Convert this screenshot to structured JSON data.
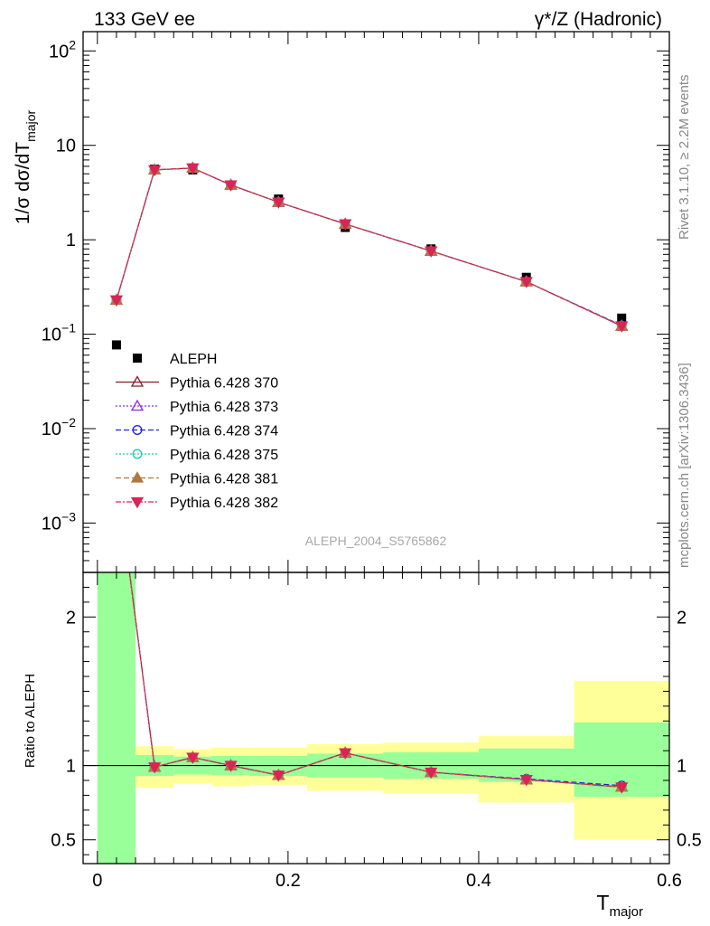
{
  "header": {
    "left_title": "133 GeV ee",
    "right_title": "γ*/Z (Hadronic)"
  },
  "side_labels": {
    "top": "Rivet 3.1.10, ≥ 2.2M events",
    "bottom": "mcplots.cern.ch [arXiv:1306.3436]"
  },
  "watermark": "ALEPH_2004_S5765862",
  "chart_data": [
    {
      "type": "line",
      "panel": "main",
      "ylabel": "1/σ  dσ/dT",
      "ylabel_sub": "major",
      "yscale": "log",
      "ylim": [
        0.0003,
        160
      ],
      "xlim": [
        -0.015,
        0.6
      ],
      "yticks": [
        {
          "value": 100,
          "base": "10",
          "exp": "2"
        },
        {
          "value": 10,
          "base": "10",
          "exp": ""
        },
        {
          "value": 1,
          "base": "1",
          "exp": ""
        },
        {
          "value": 0.1,
          "base": "10",
          "exp": "−1"
        },
        {
          "value": 0.01,
          "base": "10",
          "exp": "−2"
        },
        {
          "value": 0.001,
          "base": "10",
          "exp": "−3"
        }
      ],
      "data_series": {
        "name": "ALEPH",
        "color": "#000000",
        "x": [
          0.02,
          0.06,
          0.1,
          0.14,
          0.19,
          0.26,
          0.35,
          0.45,
          0.55
        ],
        "y": [
          0.077,
          5.6,
          5.5,
          3.8,
          2.7,
          1.35,
          0.8,
          0.4,
          0.148
        ]
      },
      "mc_x": [
        0.02,
        0.06,
        0.1,
        0.14,
        0.19,
        0.26,
        0.35,
        0.45,
        0.55
      ],
      "series": [
        {
          "name": "Pythia 6.428 370",
          "color": "#8b1a2b",
          "dash": "",
          "marker": "triangle-up-open",
          "y": [
            0.23,
            5.5,
            5.75,
            3.8,
            2.5,
            1.47,
            0.76,
            0.36,
            0.122
          ]
        },
        {
          "name": "Pythia 6.428 373",
          "color": "#8a2be2",
          "dash": "2,2",
          "marker": "triangle-up-open",
          "y": [
            0.23,
            5.5,
            5.75,
            3.8,
            2.5,
            1.47,
            0.76,
            0.36,
            0.122
          ]
        },
        {
          "name": "Pythia 6.428 374",
          "color": "#2222dd",
          "dash": "6,3",
          "marker": "circle-open",
          "y": [
            0.23,
            5.5,
            5.75,
            3.8,
            2.5,
            1.47,
            0.76,
            0.36,
            0.124
          ]
        },
        {
          "name": "Pythia 6.428 375",
          "color": "#20c9b0",
          "dash": "2,2",
          "marker": "circle-open",
          "y": [
            0.23,
            5.5,
            5.75,
            3.8,
            2.5,
            1.47,
            0.76,
            0.36,
            0.123
          ]
        },
        {
          "name": "Pythia 6.428 381",
          "color": "#b07840",
          "dash": "6,3",
          "marker": "triangle-up-filled",
          "y": [
            0.23,
            5.5,
            5.75,
            3.8,
            2.5,
            1.47,
            0.76,
            0.36,
            0.122
          ]
        },
        {
          "name": "Pythia 6.428 382",
          "color": "#dd2255",
          "dash": "6,2,2,2",
          "marker": "triangle-down-filled",
          "y": [
            0.23,
            5.5,
            5.75,
            3.8,
            2.5,
            1.47,
            0.76,
            0.36,
            0.122
          ]
        }
      ]
    },
    {
      "type": "line",
      "panel": "ratio",
      "ylabel": "Ratio to ALEPH",
      "xlabel": "T",
      "xlabel_sub": "major",
      "ylim": [
        0.34,
        2.3
      ],
      "xlim": [
        -0.015,
        0.6
      ],
      "yticks": [
        0.5,
        1,
        2
      ],
      "xticks": [
        0,
        0.2,
        0.4,
        0.6
      ],
      "reference": 1,
      "bands": [
        {
          "x0": 0.0,
          "x1": 0.04,
          "inner": [
            0.34,
            2.3
          ],
          "outer": [
            0.34,
            2.3
          ]
        },
        {
          "x0": 0.04,
          "x1": 0.08,
          "inner": [
            0.93,
            1.07
          ],
          "outer": [
            0.85,
            1.13
          ]
        },
        {
          "x0": 0.08,
          "x1": 0.12,
          "inner": [
            0.94,
            1.06
          ],
          "outer": [
            0.88,
            1.11
          ]
        },
        {
          "x0": 0.12,
          "x1": 0.16,
          "inner": [
            0.935,
            1.065
          ],
          "outer": [
            0.86,
            1.12
          ]
        },
        {
          "x0": 0.16,
          "x1": 0.22,
          "inner": [
            0.93,
            1.065
          ],
          "outer": [
            0.87,
            1.12
          ]
        },
        {
          "x0": 0.22,
          "x1": 0.3,
          "inner": [
            0.92,
            1.08
          ],
          "outer": [
            0.83,
            1.145
          ]
        },
        {
          "x0": 0.3,
          "x1": 0.4,
          "inner": [
            0.91,
            1.09
          ],
          "outer": [
            0.81,
            1.155
          ]
        },
        {
          "x0": 0.4,
          "x1": 0.5,
          "inner": [
            0.89,
            1.115
          ],
          "outer": [
            0.75,
            1.2
          ]
        },
        {
          "x0": 0.5,
          "x1": 0.6,
          "inner": [
            0.79,
            1.29
          ],
          "outer": [
            0.5,
            1.57
          ]
        }
      ],
      "series_y": [
        2.98,
        0.99,
        1.055,
        1.0,
        0.935,
        1.085,
        0.955,
        0.905,
        0.855
      ],
      "series_y_374": [
        2.98,
        0.99,
        1.055,
        1.0,
        0.935,
        1.085,
        0.955,
        0.91,
        0.865
      ]
    }
  ]
}
